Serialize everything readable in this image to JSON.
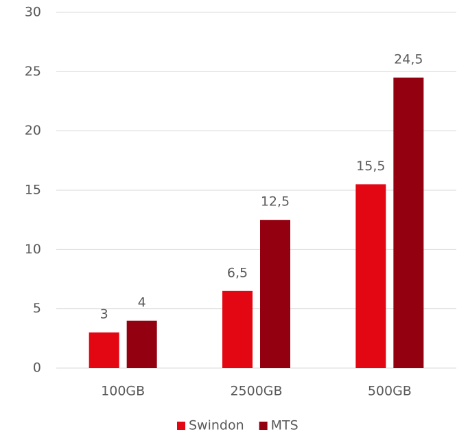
{
  "chart_data": {
    "type": "bar",
    "categories": [
      "100GB",
      "2500GB",
      "500GB"
    ],
    "series": [
      {
        "name": "Swindon",
        "color": "#e30613",
        "values": [
          3,
          6.5,
          15.5
        ],
        "value_labels": [
          "3",
          "6,5",
          "15,5"
        ]
      },
      {
        "name": "MTS",
        "color": "#930010",
        "values": [
          4,
          12.5,
          24.5
        ],
        "value_labels": [
          "4",
          "12,5",
          "24,5"
        ]
      }
    ],
    "ylim": [
      0,
      30
    ],
    "yticks": [
      0,
      5,
      10,
      15,
      20,
      25,
      30
    ],
    "grid": true,
    "legend": "bottom"
  }
}
